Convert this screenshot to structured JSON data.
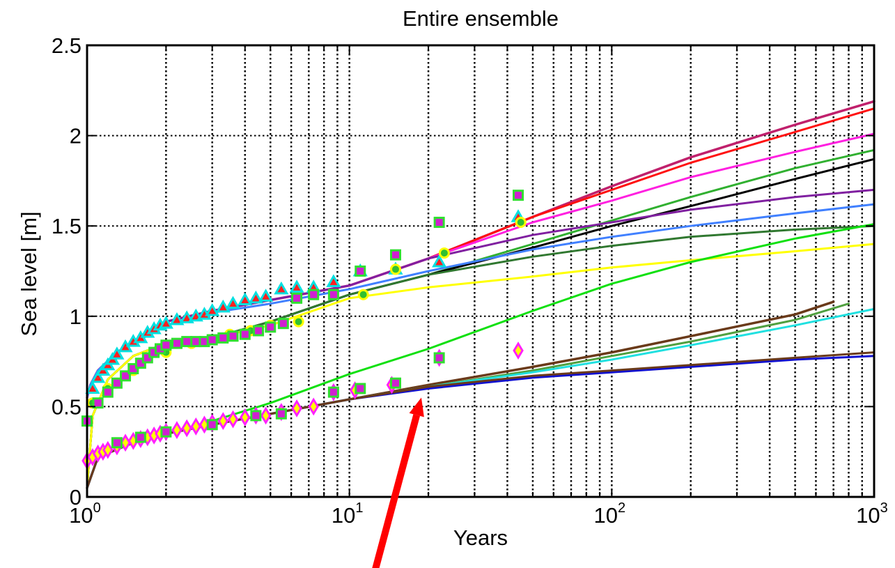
{
  "chart_data": {
    "type": "line",
    "title": "Entire ensemble",
    "xlabel": "Years",
    "ylabel": "Sea level [m]",
    "xscale": "log",
    "xlim": [
      1,
      1000
    ],
    "ylim": [
      0,
      2.5
    ],
    "x_ticks": [
      {
        "base": "10",
        "exp": "0",
        "value": 1
      },
      {
        "base": "10",
        "exp": "1",
        "value": 10
      },
      {
        "base": "10",
        "exp": "2",
        "value": 100
      },
      {
        "base": "10",
        "exp": "3",
        "value": 1000
      }
    ],
    "y_ticks": [
      "0",
      "0.5",
      "1",
      "1.5",
      "2",
      "2.5"
    ],
    "grid": true,
    "legend": "none",
    "series": [
      {
        "color": "#c0206c",
        "width": 3.5,
        "x": [
          1,
          1.03,
          1.1,
          1.3,
          2,
          3,
          5,
          10,
          20,
          50,
          100,
          200,
          500,
          1000
        ],
        "y": [
          0.55,
          0.62,
          0.7,
          0.8,
          0.97,
          1.03,
          1.09,
          1.17,
          1.32,
          1.55,
          1.72,
          1.88,
          2.06,
          2.19
        ]
      },
      {
        "color": "#ff1010",
        "width": 3,
        "x": [
          1,
          1.03,
          1.1,
          1.3,
          2,
          3,
          5,
          10,
          20,
          50,
          100,
          200,
          500,
          1000
        ],
        "y": [
          0.55,
          0.62,
          0.7,
          0.8,
          0.97,
          1.03,
          1.09,
          1.17,
          1.32,
          1.55,
          1.7,
          1.85,
          2.02,
          2.15
        ]
      },
      {
        "color": "#ff20e0",
        "width": 3,
        "x": [
          1,
          1.03,
          1.1,
          1.3,
          2,
          3,
          5,
          10,
          20,
          50,
          100,
          200,
          500,
          1000
        ],
        "y": [
          0.55,
          0.62,
          0.7,
          0.8,
          0.97,
          1.03,
          1.09,
          1.17,
          1.32,
          1.52,
          1.64,
          1.77,
          1.91,
          2.01
        ]
      },
      {
        "color": "#30b030",
        "width": 3,
        "x": [
          1,
          1.05,
          1.2,
          1.5,
          2,
          3,
          5,
          10,
          20,
          50,
          100,
          200,
          500,
          1000
        ],
        "y": [
          0.05,
          0.45,
          0.65,
          0.78,
          0.85,
          0.88,
          0.97,
          1.12,
          1.23,
          1.4,
          1.53,
          1.66,
          1.82,
          1.92
        ]
      },
      {
        "color": "#000000",
        "width": 3,
        "x": [
          1,
          1.05,
          1.2,
          1.5,
          2,
          3,
          5,
          10,
          20,
          50,
          100,
          200,
          500,
          1000
        ],
        "y": [
          0.05,
          0.45,
          0.65,
          0.78,
          0.85,
          0.88,
          0.97,
          1.12,
          1.23,
          1.38,
          1.5,
          1.61,
          1.76,
          1.87
        ]
      },
      {
        "color": "#8020a0",
        "width": 3,
        "x": [
          1,
          1.03,
          1.1,
          1.3,
          2,
          3,
          5,
          10,
          20,
          50,
          100,
          200,
          500,
          1000
        ],
        "y": [
          0.55,
          0.62,
          0.7,
          0.8,
          0.97,
          1.03,
          1.09,
          1.17,
          1.32,
          1.45,
          1.52,
          1.59,
          1.66,
          1.7
        ]
      },
      {
        "color": "#4080ff",
        "width": 3,
        "x": [
          1,
          1.03,
          1.1,
          1.3,
          2,
          3,
          5,
          10,
          20,
          50,
          100,
          200,
          500,
          1000
        ],
        "y": [
          0.55,
          0.62,
          0.7,
          0.8,
          0.95,
          1.02,
          1.07,
          1.15,
          1.25,
          1.37,
          1.44,
          1.5,
          1.57,
          1.62
        ]
      },
      {
        "color": "#307830",
        "width": 3,
        "x": [
          1,
          1.05,
          1.2,
          1.5,
          2,
          3,
          5,
          10,
          20,
          50,
          100,
          200,
          500,
          1000
        ],
        "y": [
          0.05,
          0.45,
          0.65,
          0.78,
          0.85,
          0.88,
          0.97,
          1.12,
          1.23,
          1.33,
          1.39,
          1.44,
          1.48,
          1.5
        ]
      },
      {
        "color": "#ffff00",
        "width": 3,
        "x": [
          1,
          1.05,
          1.2,
          1.5,
          2,
          3,
          5,
          10,
          20,
          50,
          100,
          200,
          500,
          1000
        ],
        "y": [
          0.05,
          0.45,
          0.65,
          0.78,
          0.85,
          0.88,
          0.95,
          1.1,
          1.16,
          1.22,
          1.27,
          1.31,
          1.36,
          1.4
        ]
      },
      {
        "color": "#10e010",
        "width": 3,
        "x": [
          1,
          1.1,
          1.5,
          2,
          3,
          5,
          10,
          20,
          50,
          100,
          200,
          500,
          1000
        ],
        "y": [
          0.05,
          0.22,
          0.3,
          0.35,
          0.42,
          0.52,
          0.68,
          0.82,
          1.03,
          1.18,
          1.3,
          1.43,
          1.51
        ]
      },
      {
        "color": "#6a3a1a",
        "width": 3.5,
        "x": [
          1,
          1.1,
          1.5,
          2,
          3,
          5,
          10,
          20,
          50,
          100,
          200,
          500,
          700
        ],
        "y": [
          0.05,
          0.22,
          0.3,
          0.35,
          0.4,
          0.46,
          0.54,
          0.62,
          0.72,
          0.8,
          0.89,
          1.01,
          1.08
        ]
      },
      {
        "color": "#50a040",
        "width": 3,
        "x": [
          1,
          1.1,
          1.5,
          2,
          3,
          5,
          10,
          20,
          50,
          100,
          200,
          500,
          800
        ],
        "y": [
          0.05,
          0.22,
          0.3,
          0.35,
          0.4,
          0.46,
          0.54,
          0.61,
          0.7,
          0.78,
          0.86,
          0.98,
          1.07
        ]
      },
      {
        "color": "#20e0e0",
        "width": 3,
        "x": [
          1,
          1.1,
          1.5,
          2,
          3,
          5,
          10,
          20,
          50,
          100,
          200,
          500,
          1000
        ],
        "y": [
          0.05,
          0.22,
          0.3,
          0.35,
          0.4,
          0.46,
          0.54,
          0.61,
          0.69,
          0.76,
          0.84,
          0.95,
          1.04
        ]
      },
      {
        "color": "#1010d0",
        "width": 3,
        "x": [
          1,
          1.1,
          1.5,
          2,
          3,
          5,
          10,
          20,
          50,
          100,
          200,
          500,
          1000
        ],
        "y": [
          0.05,
          0.22,
          0.3,
          0.35,
          0.4,
          0.46,
          0.54,
          0.6,
          0.66,
          0.69,
          0.72,
          0.76,
          0.78
        ]
      },
      {
        "color": "#6a3a1a",
        "width": 3,
        "x": [
          1,
          1.1,
          1.5,
          2,
          3,
          5,
          10,
          20,
          50,
          100,
          200,
          500,
          1000
        ],
        "y": [
          0.05,
          0.22,
          0.3,
          0.35,
          0.4,
          0.46,
          0.54,
          0.61,
          0.67,
          0.7,
          0.73,
          0.77,
          0.8
        ]
      }
    ],
    "markers": [
      {
        "shape": "triangle",
        "face": "#ff2020",
        "edge": "#00e0e0",
        "points": [
          [
            1.05,
            0.6
          ],
          [
            1.1,
            0.66
          ],
          [
            1.15,
            0.7
          ],
          [
            1.2,
            0.73
          ],
          [
            1.25,
            0.76
          ],
          [
            1.3,
            0.79
          ],
          [
            1.4,
            0.83
          ],
          [
            1.5,
            0.86
          ],
          [
            1.6,
            0.88
          ],
          [
            1.7,
            0.91
          ],
          [
            1.8,
            0.93
          ],
          [
            1.9,
            0.95
          ],
          [
            2.0,
            0.96
          ],
          [
            2.2,
            0.98
          ],
          [
            2.4,
            0.99
          ],
          [
            2.6,
            1.0
          ],
          [
            2.8,
            1.01
          ],
          [
            3.0,
            1.03
          ],
          [
            3.3,
            1.05
          ],
          [
            3.6,
            1.07
          ],
          [
            4.0,
            1.09
          ],
          [
            4.4,
            1.1
          ],
          [
            4.8,
            1.11
          ],
          [
            5.5,
            1.15
          ],
          [
            6.3,
            1.16
          ],
          [
            7.3,
            1.16
          ],
          [
            8.7,
            1.19
          ],
          [
            11,
            1.25
          ],
          [
            15,
            1.26
          ],
          [
            22,
            1.3
          ],
          [
            44,
            1.55
          ]
        ]
      },
      {
        "shape": "circle",
        "face": "#30c030",
        "edge": "#ffff00",
        "points": [
          [
            1.05,
            0.52
          ],
          [
            1.2,
            0.6
          ],
          [
            1.5,
            0.7
          ],
          [
            2.0,
            0.8
          ],
          [
            2.5,
            0.85
          ],
          [
            3.0,
            0.87
          ],
          [
            3.5,
            0.9
          ],
          [
            4.2,
            0.92
          ],
          [
            5.0,
            0.95
          ],
          [
            6.4,
            0.97
          ],
          [
            11.3,
            1.12
          ],
          [
            15,
            1.26
          ],
          [
            23,
            1.35
          ],
          [
            45,
            1.52
          ]
        ]
      },
      {
        "shape": "square",
        "face": "#d020d0",
        "edge": "#30e030",
        "points": [
          [
            1.0,
            0.42
          ],
          [
            1.1,
            0.52
          ],
          [
            1.2,
            0.58
          ],
          [
            1.3,
            0.63
          ],
          [
            1.4,
            0.67
          ],
          [
            1.5,
            0.71
          ],
          [
            1.6,
            0.74
          ],
          [
            1.7,
            0.77
          ],
          [
            1.8,
            0.8
          ],
          [
            1.9,
            0.82
          ],
          [
            2.0,
            0.84
          ],
          [
            2.2,
            0.85
          ],
          [
            2.4,
            0.86
          ],
          [
            2.6,
            0.86
          ],
          [
            2.8,
            0.86
          ],
          [
            3.0,
            0.87
          ],
          [
            3.3,
            0.88
          ],
          [
            3.6,
            0.89
          ],
          [
            4.0,
            0.9
          ],
          [
            4.5,
            0.92
          ],
          [
            5.0,
            0.94
          ],
          [
            5.6,
            0.96
          ],
          [
            6.3,
            1.1
          ],
          [
            7.3,
            1.12
          ],
          [
            8.7,
            1.12
          ],
          [
            11,
            1.25
          ],
          [
            15,
            1.34
          ],
          [
            22,
            1.52
          ],
          [
            44,
            1.67
          ]
        ]
      },
      {
        "shape": "diamond",
        "face": "#ffff00",
        "edge": "#ff20ff",
        "points": [
          [
            1.0,
            0.2
          ],
          [
            1.05,
            0.22
          ],
          [
            1.1,
            0.24
          ],
          [
            1.15,
            0.25
          ],
          [
            1.2,
            0.26
          ],
          [
            1.3,
            0.28
          ],
          [
            1.4,
            0.3
          ],
          [
            1.5,
            0.31
          ],
          [
            1.6,
            0.32
          ],
          [
            1.7,
            0.33
          ],
          [
            1.8,
            0.34
          ],
          [
            1.9,
            0.35
          ],
          [
            2.0,
            0.36
          ],
          [
            2.2,
            0.37
          ],
          [
            2.4,
            0.38
          ],
          [
            2.6,
            0.39
          ],
          [
            2.8,
            0.4
          ],
          [
            3.0,
            0.41
          ],
          [
            3.3,
            0.42
          ],
          [
            3.6,
            0.43
          ],
          [
            4.0,
            0.44
          ],
          [
            4.4,
            0.45
          ],
          [
            4.8,
            0.45
          ],
          [
            5.5,
            0.47
          ],
          [
            6.3,
            0.49
          ],
          [
            7.3,
            0.5
          ],
          [
            8.7,
            0.58
          ],
          [
            10.5,
            0.59
          ],
          [
            14.5,
            0.62
          ],
          [
            22,
            0.77
          ],
          [
            44,
            0.81
          ]
        ]
      },
      {
        "shape": "square",
        "face": "#d020d0",
        "edge": "#30e030",
        "points": [
          [
            1.3,
            0.3
          ],
          [
            1.6,
            0.33
          ],
          [
            2.0,
            0.36
          ],
          [
            3.0,
            0.4
          ],
          [
            4.4,
            0.45
          ],
          [
            5.5,
            0.46
          ],
          [
            8.7,
            0.58
          ],
          [
            11,
            0.6
          ],
          [
            15,
            0.63
          ],
          [
            22,
            0.77
          ]
        ]
      }
    ],
    "annotations": [
      {
        "type": "arrow",
        "color": "#ff0000",
        "from": [
          12.3,
          -0.45
        ],
        "to": [
          18.8,
          0.55
        ]
      }
    ]
  }
}
